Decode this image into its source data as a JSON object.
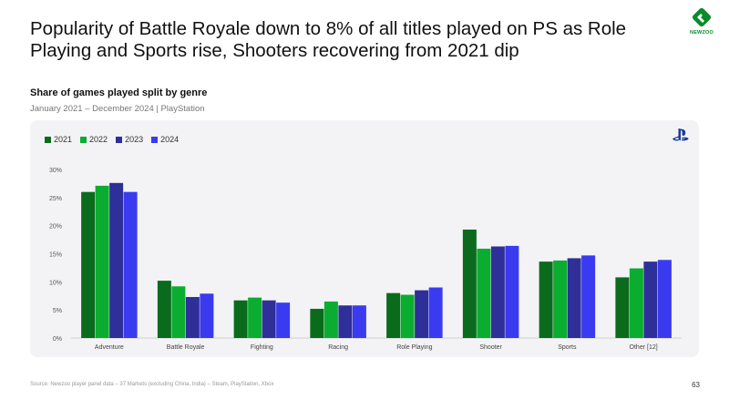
{
  "headline": "Popularity of Battle Royale down to 8% of all titles played on PS as Role Playing and Sports rise, Shooters recovering from 2021 dip",
  "logo_text": "NEWZOO",
  "subtitle": "Share of games played split by genre",
  "subtitle2": "January 2021 – December 2024 | PlayStation",
  "platform_icon": "playstation-icon",
  "footer_source": "Source: Newzoo player panel data – 37 Markets (excluding China, India) – Steam, PlayStation, Xbox",
  "page_number": "63",
  "colors": {
    "2021": "#0b6b1c",
    "2022": "#0aad2f",
    "2023": "#2f2f9a",
    "2024": "#3a3af0",
    "brand": "#0a8a2a"
  },
  "chart_data": {
    "type": "bar",
    "title": "Share of games played split by genre",
    "subtitle": "January 2021 – December 2024 | PlayStation",
    "categories": [
      "Adventure",
      "Battle Royale",
      "Fighting",
      "Racing",
      "Role Playing",
      "Shooter",
      "Sports",
      "Other [12]"
    ],
    "series": [
      {
        "name": "2021",
        "values": [
          26.0,
          10.2,
          6.7,
          5.2,
          8.0,
          19.3,
          13.6,
          10.8
        ]
      },
      {
        "name": "2022",
        "values": [
          27.1,
          9.2,
          7.2,
          6.5,
          7.7,
          15.9,
          13.8,
          12.4
        ]
      },
      {
        "name": "2023",
        "values": [
          27.6,
          7.3,
          6.7,
          5.8,
          8.5,
          16.3,
          14.2,
          13.6
        ]
      },
      {
        "name": "2024",
        "values": [
          26.0,
          7.9,
          6.3,
          5.8,
          9.0,
          16.4,
          14.7,
          13.9
        ]
      }
    ],
    "ylim": [
      0,
      30
    ],
    "yticks": [
      "0%",
      "5%",
      "10%",
      "15%",
      "20%",
      "25%",
      "30%"
    ],
    "xlabel": "",
    "ylabel": "",
    "grid": false,
    "legend": "top-left"
  }
}
